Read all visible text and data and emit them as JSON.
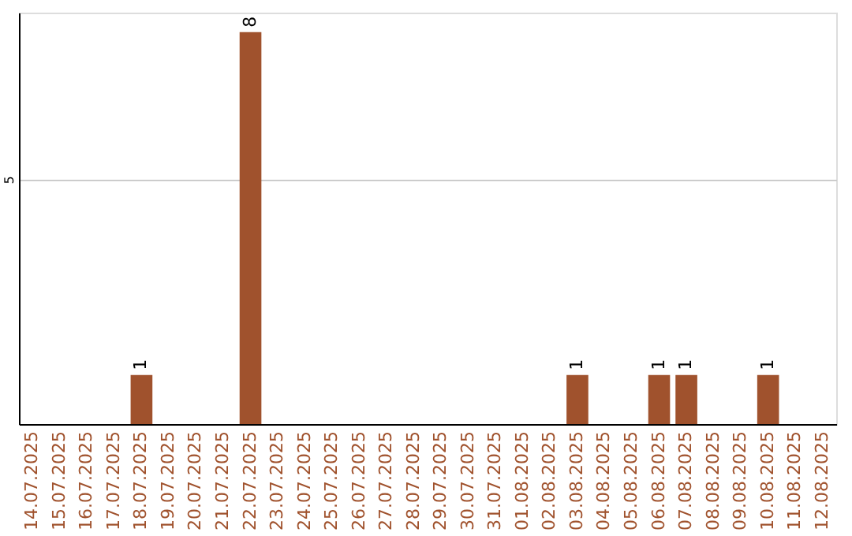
{
  "chart_data": {
    "type": "bar",
    "categories": [
      "14.07.2025",
      "15.07.2025",
      "16.07.2025",
      "17.07.2025",
      "18.07.2025",
      "19.07.2025",
      "20.07.2025",
      "21.07.2025",
      "22.07.2025",
      "23.07.2025",
      "24.07.2025",
      "25.07.2025",
      "26.07.2025",
      "27.07.2025",
      "28.07.2025",
      "29.07.2025",
      "30.07.2025",
      "31.07.2025",
      "01.08.2025",
      "02.08.2025",
      "03.08.2025",
      "04.08.2025",
      "05.08.2025",
      "06.08.2025",
      "07.08.2025",
      "08.08.2025",
      "09.08.2025",
      "10.08.2025",
      "11.08.2025",
      "12.08.2025"
    ],
    "values": [
      0,
      0,
      0,
      0,
      1,
      0,
      0,
      0,
      8,
      0,
      0,
      0,
      0,
      0,
      0,
      0,
      0,
      0,
      0,
      0,
      1,
      0,
      0,
      1,
      1,
      0,
      0,
      1,
      0,
      0
    ],
    "value_labels": [
      null,
      null,
      null,
      null,
      "1",
      null,
      null,
      null,
      "8",
      null,
      null,
      null,
      null,
      null,
      null,
      null,
      null,
      null,
      null,
      null,
      "1",
      null,
      null,
      "1",
      "1",
      null,
      null,
      "1",
      null,
      null
    ],
    "color": "#a0522d",
    "ylim": [
      0,
      8.4
    ],
    "yticks": [
      5
    ],
    "grid": "y"
  }
}
